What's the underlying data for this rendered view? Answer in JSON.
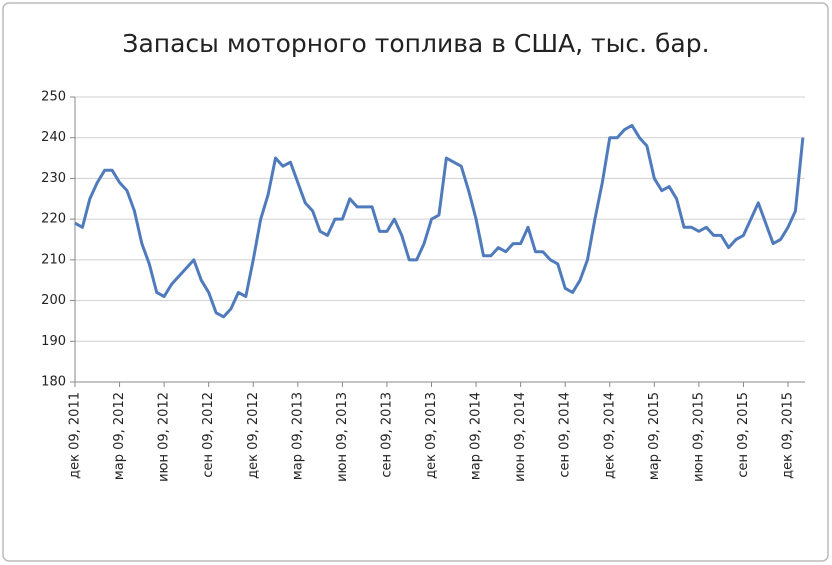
{
  "chart_data": {
    "type": "line",
    "title": "Запасы моторного топлива в США, тыс. бар.",
    "categories": [
      "дек 09, 2011",
      null,
      null,
      null,
      null,
      null,
      "мар 09, 2012",
      null,
      null,
      null,
      null,
      null,
      "июн 09, 2012",
      null,
      null,
      null,
      null,
      null,
      "сен 09, 2012",
      null,
      null,
      null,
      null,
      null,
      "дек 09, 2012",
      null,
      null,
      null,
      null,
      null,
      "мар 09, 2013",
      null,
      null,
      null,
      null,
      null,
      "июн 09, 2013",
      null,
      null,
      null,
      null,
      null,
      "сен 09, 2013",
      null,
      null,
      null,
      null,
      null,
      "дек 09, 2013",
      null,
      null,
      null,
      null,
      null,
      "мар 09, 2014",
      null,
      null,
      null,
      null,
      null,
      "июн 09, 2014",
      null,
      null,
      null,
      null,
      null,
      "сен 09, 2014",
      null,
      null,
      null,
      null,
      null,
      "дек 09, 2014",
      null,
      null,
      null,
      null,
      null,
      "мар 09, 2015",
      null,
      null,
      null,
      null,
      null,
      "июн 09, 2015",
      null,
      null,
      null,
      null,
      null,
      "сен 09, 2015",
      null,
      null,
      null,
      null,
      null,
      "дек 09, 2015",
      null,
      null
    ],
    "series": [
      {
        "color": "#4f7bbd",
        "values": [
          219,
          218,
          225,
          229,
          232,
          232,
          229,
          227,
          222,
          214,
          209,
          202,
          201,
          204,
          206,
          208,
          210,
          205,
          202,
          197,
          196,
          198,
          202,
          201,
          210,
          220,
          226,
          235,
          233,
          234,
          229,
          224,
          222,
          217,
          216,
          220,
          220,
          225,
          223,
          223,
          223,
          217,
          217,
          220,
          216,
          210,
          210,
          214,
          220,
          221,
          235,
          234,
          233,
          227,
          220,
          211,
          211,
          213,
          212,
          214,
          214,
          218,
          212,
          212,
          210,
          209,
          203,
          202,
          205,
          210,
          220,
          229,
          240,
          240,
          242,
          243,
          240,
          238,
          230,
          227,
          228,
          225,
          218,
          218,
          217,
          218,
          216,
          216,
          213,
          215,
          216,
          220,
          224,
          219,
          214,
          215,
          218,
          222,
          240
        ]
      }
    ],
    "ylim": [
      180,
      250
    ],
    "yticks": [
      180,
      190,
      200,
      210,
      220,
      230,
      240,
      250
    ],
    "grid": true
  }
}
